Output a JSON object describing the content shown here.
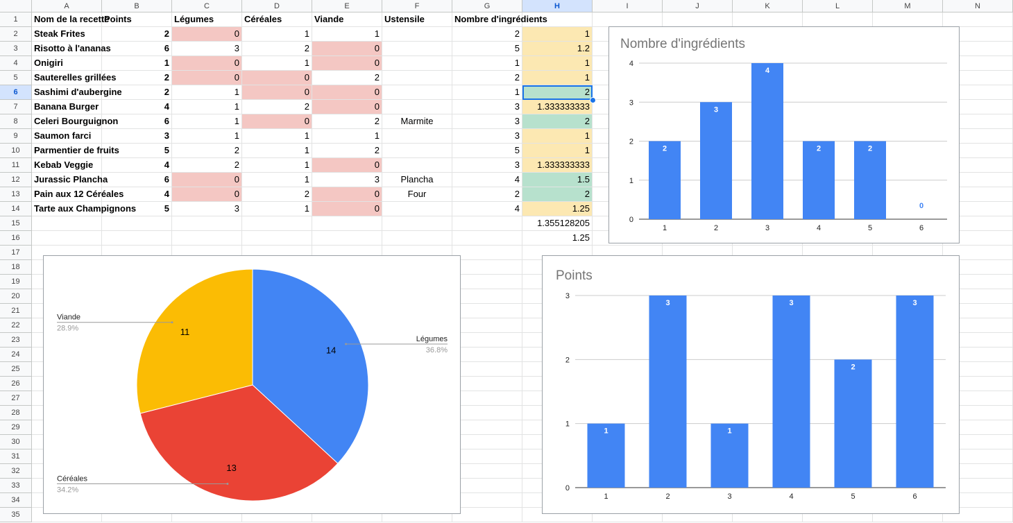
{
  "columns": [
    "A",
    "B",
    "C",
    "D",
    "E",
    "F",
    "G",
    "H",
    "I",
    "J",
    "K",
    "L",
    "M",
    "N"
  ],
  "selected_column": "H",
  "selected_row": 6,
  "rows_count": 35,
  "headers": [
    "Nom de la recette",
    "Points",
    "Légumes",
    "Céréales",
    "Viande",
    "Ustensile",
    "Nombre d'ingrédients",
    ""
  ],
  "rows": [
    {
      "name": "Steak Frites",
      "points": "2",
      "legumes": "0",
      "cereales": "1",
      "viande": "1",
      "ustensile": "",
      "nb": "2",
      "h": "1"
    },
    {
      "name": "Risotto à l'ananas",
      "points": "6",
      "legumes": "3",
      "cereales": "2",
      "viande": "0",
      "ustensile": "",
      "nb": "5",
      "h": "1.2"
    },
    {
      "name": "Onigiri",
      "points": "1",
      "legumes": "0",
      "cereales": "1",
      "viande": "0",
      "ustensile": "",
      "nb": "1",
      "h": "1"
    },
    {
      "name": "Sauterelles grillées",
      "points": "2",
      "legumes": "0",
      "cereales": "0",
      "viande": "2",
      "ustensile": "",
      "nb": "2",
      "h": "1"
    },
    {
      "name": "Sashimi d'aubergine",
      "points": "2",
      "legumes": "1",
      "cereales": "0",
      "viande": "0",
      "ustensile": "",
      "nb": "1",
      "h": "2"
    },
    {
      "name": "Banana Burger",
      "points": "4",
      "legumes": "1",
      "cereales": "2",
      "viande": "0",
      "ustensile": "",
      "nb": "3",
      "h": "1.333333333"
    },
    {
      "name": "Celeri Bourguignon",
      "points": "6",
      "legumes": "1",
      "cereales": "0",
      "viande": "2",
      "ustensile": "Marmite",
      "nb": "3",
      "h": "2"
    },
    {
      "name": "Saumon farci",
      "points": "3",
      "legumes": "1",
      "cereales": "1",
      "viande": "1",
      "ustensile": "",
      "nb": "3",
      "h": "1"
    },
    {
      "name": "Parmentier de fruits",
      "points": "5",
      "legumes": "2",
      "cereales": "1",
      "viande": "2",
      "ustensile": "",
      "nb": "5",
      "h": "1"
    },
    {
      "name": "Kebab Veggie",
      "points": "4",
      "legumes": "2",
      "cereales": "1",
      "viande": "0",
      "ustensile": "",
      "nb": "3",
      "h": "1.333333333"
    },
    {
      "name": "Jurassic Plancha",
      "points": "6",
      "legumes": "0",
      "cereales": "1",
      "viande": "3",
      "ustensile": "Plancha",
      "nb": "4",
      "h": "1.5"
    },
    {
      "name": "Pain aux 12 Céréales",
      "points": "4",
      "legumes": "0",
      "cereales": "2",
      "viande": "0",
      "ustensile": "Four",
      "nb": "2",
      "h": "2"
    },
    {
      "name": "Tarte aux Champignons",
      "points": "5",
      "legumes": "3",
      "cereales": "1",
      "viande": "0",
      "ustensile": "",
      "nb": "4",
      "h": "1.25"
    }
  ],
  "extra_h": [
    "1.355128205",
    "1.25"
  ],
  "colors": {
    "blue": "#4285f4",
    "red": "#ea4335",
    "yellow": "#fbbc04",
    "pink": "#f4c7c3",
    "lightyellow": "#fce8b2",
    "green": "#b7e1cd"
  },
  "chart_data": [
    {
      "type": "bar",
      "title": "Nombre d'ingrédients",
      "categories": [
        "1",
        "2",
        "3",
        "4",
        "5",
        "6"
      ],
      "values": [
        2,
        3,
        4,
        2,
        2,
        0
      ],
      "ylim": [
        0,
        4
      ],
      "yticks": [
        "0",
        "1",
        "2",
        "3",
        "4"
      ],
      "grid": true
    },
    {
      "type": "pie",
      "title": "",
      "labels": [
        "Légumes",
        "Céréales",
        "Viande"
      ],
      "values": [
        14,
        13,
        11
      ],
      "percents": [
        "36.8%",
        "34.2%",
        "28.9%"
      ]
    },
    {
      "type": "bar",
      "title": "Points",
      "categories": [
        "1",
        "2",
        "3",
        "4",
        "5",
        "6"
      ],
      "values": [
        1,
        3,
        1,
        3,
        2,
        3
      ],
      "ylim": [
        0,
        3
      ],
      "yticks": [
        "0",
        "1",
        "2",
        "3"
      ],
      "grid": true
    }
  ]
}
